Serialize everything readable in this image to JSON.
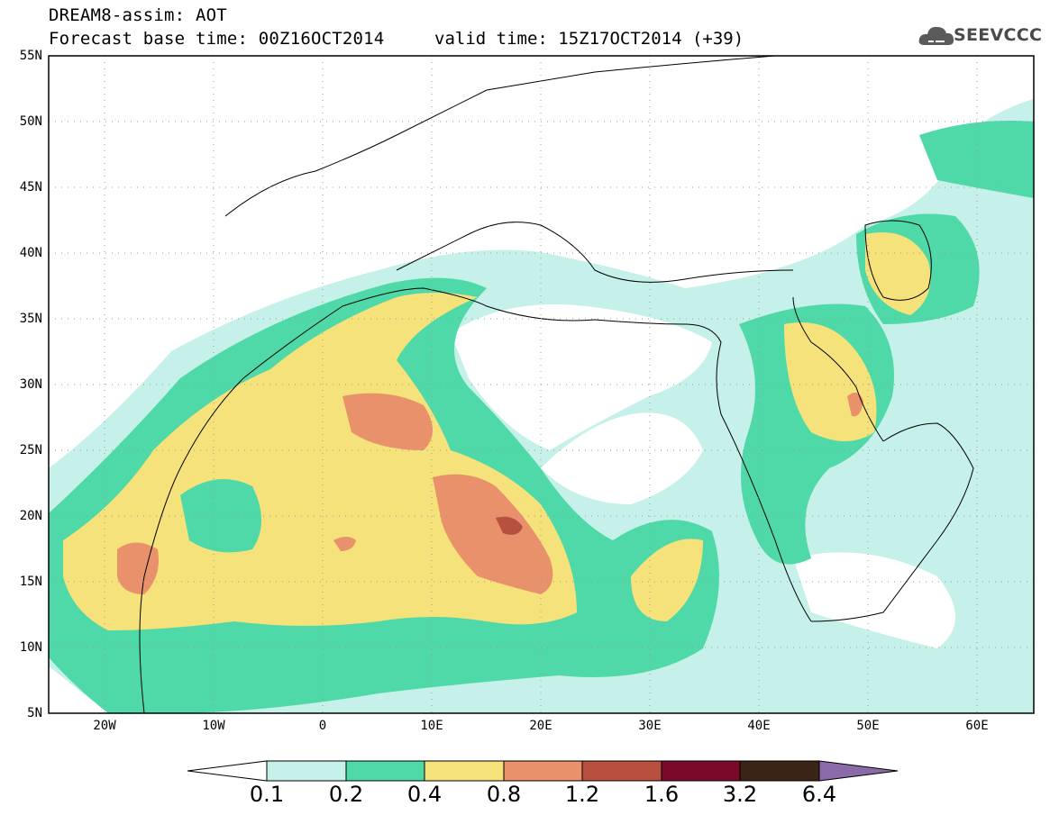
{
  "header": {
    "title_line1": "DREAM8-assim: AOT",
    "title_line2": "Forecast base time: 00Z16OCT2014",
    "valid_time": "valid time: 15Z17OCT2014 (+39)",
    "logo_text": "SEEVCCC"
  },
  "map": {
    "lon_range": [
      -25,
      65
    ],
    "lat_range": [
      5,
      55
    ],
    "lat_ticks": [
      "55N",
      "50N",
      "45N",
      "40N",
      "35N",
      "30N",
      "25N",
      "20N",
      "15N",
      "10N",
      "5N"
    ],
    "lon_ticks": [
      "20W",
      "10W",
      "0",
      "10E",
      "20E",
      "30E",
      "40E",
      "50E",
      "60E"
    ],
    "gridlines": "dotted"
  },
  "colorbar": {
    "levels": [
      "0.1",
      "0.2",
      "0.4",
      "0.8",
      "1.2",
      "1.6",
      "3.2",
      "6.4"
    ],
    "colors": [
      "#ffffff",
      "#c6f0ea",
      "#4fd9a8",
      "#f5e27a",
      "#e8916a",
      "#b8503f",
      "#7a0a2a",
      "#3a2415",
      "#8a6aa8"
    ]
  }
}
